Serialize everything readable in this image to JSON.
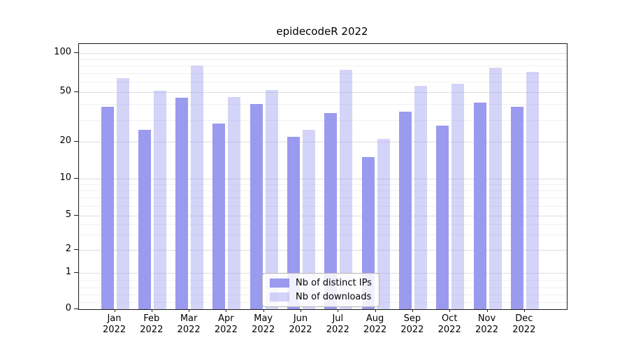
{
  "chart_data": {
    "type": "bar",
    "title": "epidecodeR 2022",
    "categories": [
      "Jan",
      "Feb",
      "Mar",
      "Apr",
      "May",
      "Jun",
      "Jul",
      "Aug",
      "Sep",
      "Oct",
      "Nov",
      "Dec"
    ],
    "year": "2022",
    "series": [
      {
        "name": "Nb of distinct IPs",
        "color": "#9a9aef",
        "values": [
          38,
          25,
          45,
          28,
          40,
          22,
          34,
          15,
          35,
          27,
          41,
          38
        ]
      },
      {
        "name": "Nb of downloads",
        "color": "rgba(153,153,238,0.42)",
        "values": [
          64,
          51,
          80,
          46,
          52,
          25,
          74,
          21,
          56,
          58,
          77,
          72
        ]
      }
    ],
    "yscale": "symlog",
    "yticks": [
      0,
      1,
      2,
      5,
      10,
      20,
      50,
      100
    ],
    "ylim": [
      0,
      117
    ],
    "grid": true,
    "legend_position": "lower center",
    "xlabel": "",
    "ylabel": ""
  }
}
